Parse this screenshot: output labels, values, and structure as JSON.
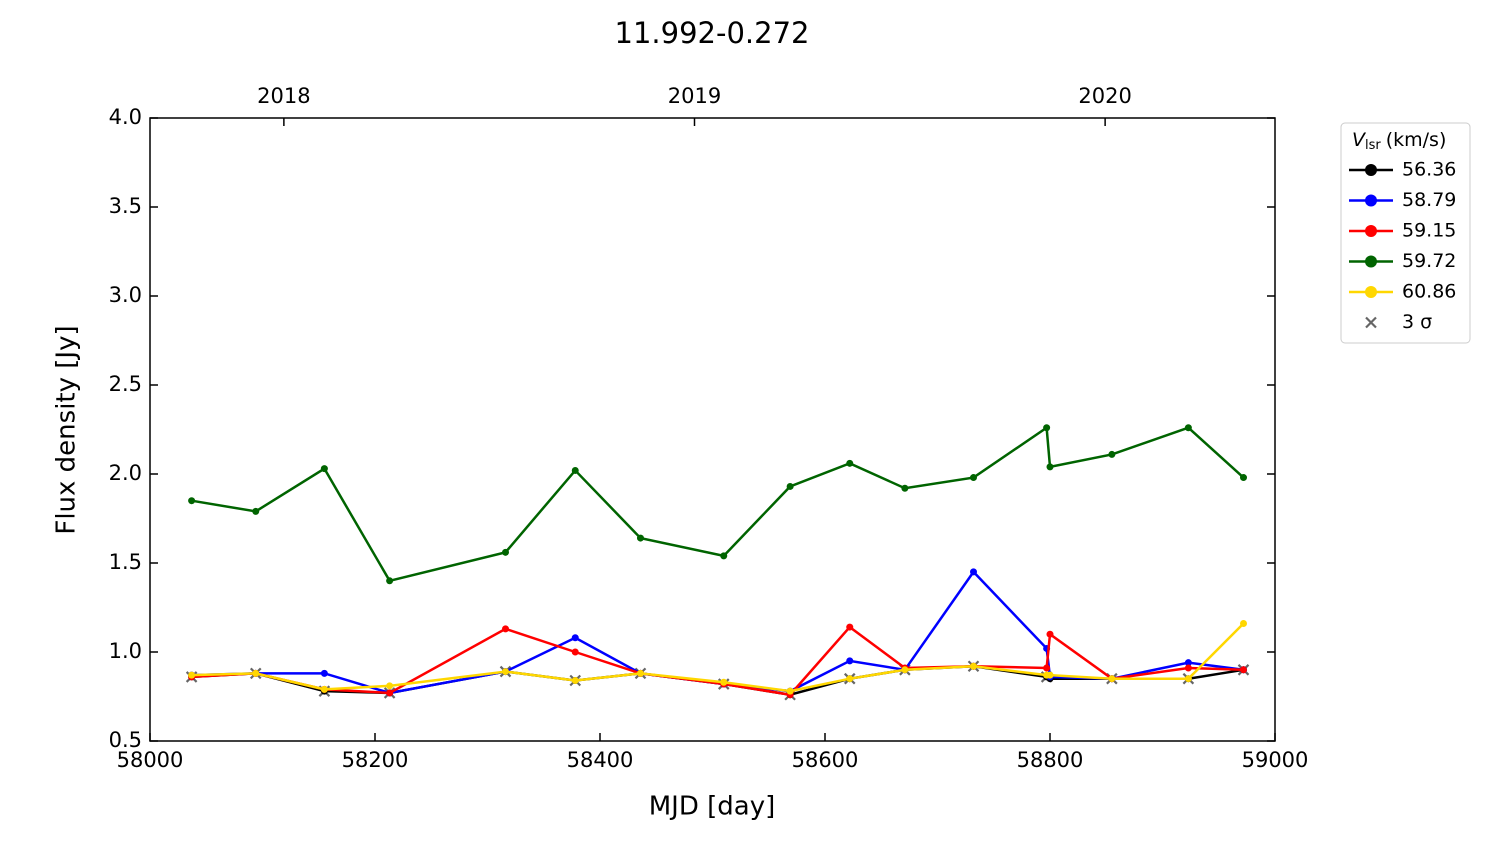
{
  "chart_data": {
    "type": "line",
    "title": "11.992-0.272",
    "xlabel": "MJD [day]",
    "ylabel": "Flux density [Jy]",
    "x": [
      58037,
      58094,
      58155,
      58213,
      58316,
      58378,
      58436,
      58510,
      58569,
      58622,
      58671,
      58732,
      58797,
      58800,
      58855,
      58923,
      58972
    ],
    "series": [
      {
        "name": "56.36",
        "color": "#000000",
        "values": [
          0.86,
          0.88,
          0.78,
          0.77,
          0.89,
          0.84,
          0.88,
          0.82,
          0.76,
          0.85,
          0.9,
          0.92,
          0.86,
          0.85,
          0.85,
          0.85,
          0.9
        ]
      },
      {
        "name": "58.79",
        "color": "#0000ff",
        "values": [
          0.87,
          0.88,
          0.88,
          0.77,
          0.89,
          1.08,
          0.88,
          0.82,
          0.78,
          0.95,
          0.9,
          1.45,
          1.02,
          0.86,
          0.85,
          0.94,
          0.9
        ]
      },
      {
        "name": "59.15",
        "color": "#ff0000",
        "values": [
          0.86,
          0.88,
          0.79,
          0.77,
          1.13,
          1.0,
          0.88,
          0.82,
          0.76,
          1.14,
          0.91,
          0.92,
          0.91,
          1.1,
          0.85,
          0.91,
          0.9
        ]
      },
      {
        "name": "59.72",
        "color": "#006400",
        "values": [
          1.85,
          1.79,
          2.03,
          1.4,
          1.56,
          2.02,
          1.64,
          1.54,
          1.93,
          2.06,
          1.92,
          1.98,
          2.26,
          2.04,
          2.11,
          2.26,
          1.98
        ]
      },
      {
        "name": "60.86",
        "color": "#ffd700",
        "values": [
          0.87,
          0.88,
          0.79,
          0.81,
          0.89,
          0.84,
          0.88,
          0.83,
          0.78,
          0.85,
          0.9,
          0.92,
          0.87,
          0.87,
          0.85,
          0.85,
          1.16
        ]
      },
      {
        "name": "3 σ",
        "color": "#666666",
        "marker": "x",
        "x": [
          58037,
          58094,
          58155,
          58213,
          58316,
          58378,
          58436,
          58510,
          58569,
          58622,
          58671,
          58732,
          58797,
          58855,
          58923,
          58972
        ],
        "values": [
          0.86,
          0.88,
          0.78,
          0.77,
          0.89,
          0.84,
          0.88,
          0.82,
          0.76,
          0.85,
          0.9,
          0.92,
          0.86,
          0.85,
          0.85,
          0.9
        ]
      }
    ],
    "xlim": [
      58000,
      59000
    ],
    "xticks": [
      58000,
      58200,
      58400,
      58600,
      58800,
      59000
    ],
    "ylim": [
      0.5,
      4.0
    ],
    "yticks": [
      {
        "value": 0.5,
        "label": "0.5"
      },
      {
        "value": 1,
        "label": "1.0"
      },
      {
        "value": 1.5,
        "label": "1.5"
      },
      {
        "value": 2,
        "label": "2.0"
      },
      {
        "value": 2.5,
        "label": "2.5"
      },
      {
        "value": 3,
        "label": "3.0"
      },
      {
        "value": 3.5,
        "label": "3.5"
      },
      {
        "value": 4,
        "label": "4.0"
      }
    ],
    "x2ticks": [
      {
        "value": 58119,
        "label": "2018"
      },
      {
        "value": 58484,
        "label": "2019"
      },
      {
        "value": 58849,
        "label": "2020"
      }
    ],
    "legend_title": {
      "symbol": "V",
      "subscript": "lsr",
      "unit": "(km/s)"
    },
    "legend": "outside-right"
  }
}
